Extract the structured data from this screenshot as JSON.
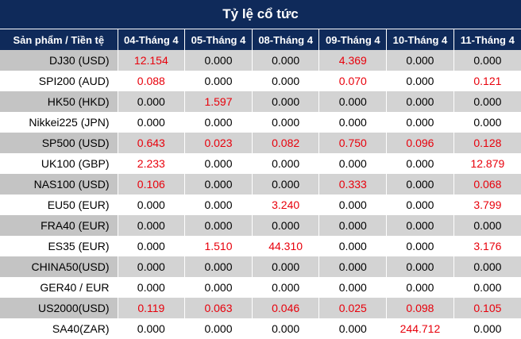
{
  "title": "Tỷ lệ cổ tức",
  "columns": [
    "Sản phẩm / Tiền tệ",
    "04-Tháng 4",
    "05-Tháng 4",
    "08-Tháng 4",
    "09-Tháng 4",
    "10-Tháng 4",
    "11-Tháng 4"
  ],
  "rows": [
    {
      "product": "DJ30 (USD)",
      "values": [
        "12.154",
        "0.000",
        "0.000",
        "4.369",
        "0.000",
        "0.000"
      ]
    },
    {
      "product": "SPI200 (AUD)",
      "values": [
        "0.088",
        "0.000",
        "0.000",
        "0.070",
        "0.000",
        "0.121"
      ]
    },
    {
      "product": "HK50 (HKD)",
      "values": [
        "0.000",
        "1.597",
        "0.000",
        "0.000",
        "0.000",
        "0.000"
      ]
    },
    {
      "product": "Nikkei225 (JPN)",
      "values": [
        "0.000",
        "0.000",
        "0.000",
        "0.000",
        "0.000",
        "0.000"
      ]
    },
    {
      "product": "SP500 (USD)",
      "values": [
        "0.643",
        "0.023",
        "0.082",
        "0.750",
        "0.096",
        "0.128"
      ]
    },
    {
      "product": "UK100 (GBP)",
      "values": [
        "2.233",
        "0.000",
        "0.000",
        "0.000",
        "0.000",
        "12.879"
      ]
    },
    {
      "product": "NAS100 (USD)",
      "values": [
        "0.106",
        "0.000",
        "0.000",
        "0.333",
        "0.000",
        "0.068"
      ]
    },
    {
      "product": "EU50 (EUR)",
      "values": [
        "0.000",
        "0.000",
        "3.240",
        "0.000",
        "0.000",
        "3.799"
      ]
    },
    {
      "product": "FRA40 (EUR)",
      "values": [
        "0.000",
        "0.000",
        "0.000",
        "0.000",
        "0.000",
        "0.000"
      ]
    },
    {
      "product": "ES35 (EUR)",
      "values": [
        "0.000",
        "1.510",
        "44.310",
        "0.000",
        "0.000",
        "3.176"
      ]
    },
    {
      "product": "CHINA50(USD)",
      "values": [
        "0.000",
        "0.000",
        "0.000",
        "0.000",
        "0.000",
        "0.000"
      ]
    },
    {
      "product": "GER40 / EUR",
      "values": [
        "0.000",
        "0.000",
        "0.000",
        "0.000",
        "0.000",
        "0.000"
      ]
    },
    {
      "product": "US2000(USD)",
      "values": [
        "0.119",
        "0.063",
        "0.046",
        "0.025",
        "0.098",
        "0.105"
      ]
    },
    {
      "product": "SA40(ZAR)",
      "values": [
        "0.000",
        "0.000",
        "0.000",
        "0.000",
        "244.712",
        "0.000"
      ]
    }
  ],
  "colors": {
    "header_bg": "#0f2a5a",
    "header_text": "#ffffff",
    "positive_value": "#e8000b",
    "zero_value": "#000000",
    "row_stripe": "#d3d3d3"
  }
}
